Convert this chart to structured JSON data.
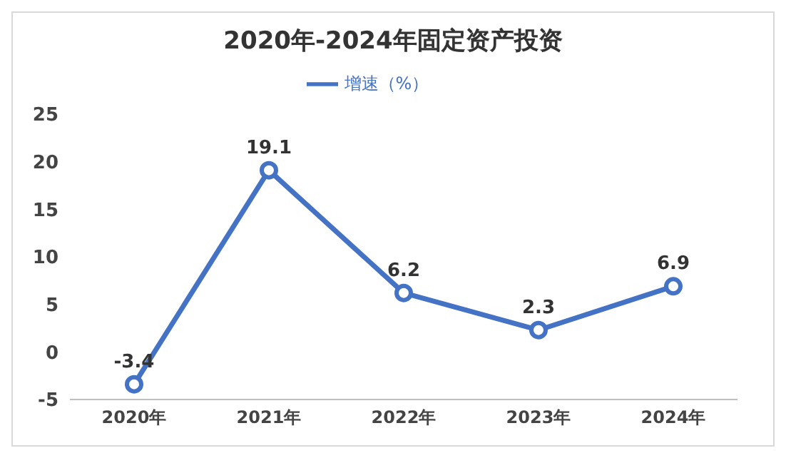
{
  "chart_data": {
    "type": "line",
    "title": "2020年-2024年固定资产投资",
    "categories": [
      "2020年",
      "2021年",
      "2022年",
      "2023年",
      "2024年"
    ],
    "series": [
      {
        "name": "增速（%）",
        "color": "#4472c4",
        "values": [
          -3.4,
          19.1,
          6.2,
          2.3,
          6.9
        ]
      }
    ],
    "ylim": [
      -5,
      25
    ],
    "yticks": [
      -5,
      0,
      5,
      10,
      15,
      20,
      25
    ],
    "legend": "top",
    "marker": "circle",
    "line_style": "solid",
    "data_labels": true
  }
}
